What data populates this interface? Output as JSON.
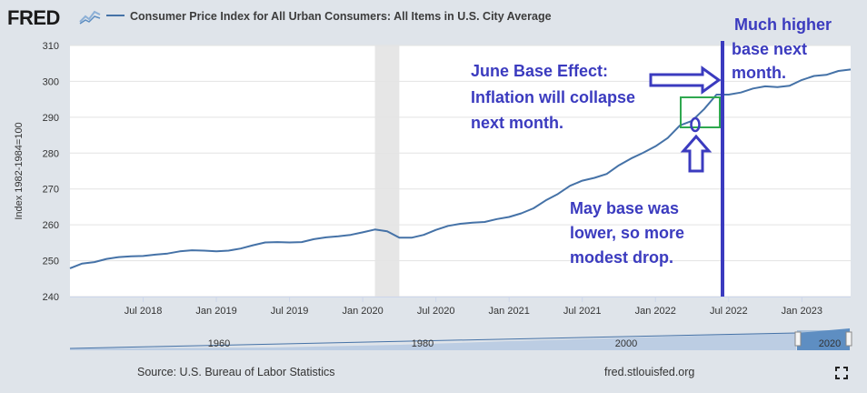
{
  "logo": "FRED",
  "chart_data": {
    "type": "line",
    "title": "Consumer Price Index for All Urban Consumers: All Items in U.S. City Average",
    "ylabel": "Index 1982-1984=100",
    "ylim": [
      240,
      310
    ],
    "yticks": [
      240,
      250,
      260,
      270,
      280,
      290,
      300,
      310
    ],
    "xlim": [
      "2018-01",
      "2023-05"
    ],
    "xticks": [
      "Jul 2018",
      "Jan 2019",
      "Jul 2019",
      "Jan 2020",
      "Jul 2020",
      "Jan 2021",
      "Jul 2021",
      "Jan 2022",
      "Jul 2022",
      "Jan 2023"
    ],
    "grid": "horizontal",
    "recession_shading": {
      "start": "2020-02",
      "end": "2020-04"
    },
    "series": [
      {
        "name": "Consumer Price Index for All Urban Consumers: All Items in U.S. City Average",
        "color": "#4572a7",
        "x": [
          "2018-01",
          "2018-02",
          "2018-03",
          "2018-04",
          "2018-05",
          "2018-06",
          "2018-07",
          "2018-08",
          "2018-09",
          "2018-10",
          "2018-11",
          "2018-12",
          "2019-01",
          "2019-02",
          "2019-03",
          "2019-04",
          "2019-05",
          "2019-06",
          "2019-07",
          "2019-08",
          "2019-09",
          "2019-10",
          "2019-11",
          "2019-12",
          "2020-01",
          "2020-02",
          "2020-03",
          "2020-04",
          "2020-05",
          "2020-06",
          "2020-07",
          "2020-08",
          "2020-09",
          "2020-10",
          "2020-11",
          "2020-12",
          "2021-01",
          "2021-02",
          "2021-03",
          "2021-04",
          "2021-05",
          "2021-06",
          "2021-07",
          "2021-08",
          "2021-09",
          "2021-10",
          "2021-11",
          "2021-12",
          "2022-01",
          "2022-02",
          "2022-03",
          "2022-04",
          "2022-05",
          "2022-06",
          "2022-07",
          "2022-08",
          "2022-09",
          "2022-10",
          "2022-11",
          "2022-12",
          "2023-01",
          "2023-02",
          "2023-03",
          "2023-04",
          "2023-05"
        ],
        "values": [
          247.9,
          249.2,
          249.6,
          250.5,
          251.0,
          251.2,
          251.3,
          251.7,
          252.0,
          252.6,
          252.9,
          252.8,
          252.6,
          252.8,
          253.4,
          254.3,
          255.1,
          255.2,
          255.1,
          255.2,
          256.0,
          256.5,
          256.8,
          257.2,
          257.9,
          258.7,
          258.2,
          256.4,
          256.4,
          257.2,
          258.6,
          259.7,
          260.3,
          260.6,
          260.8,
          261.6,
          262.2,
          263.2,
          264.6,
          266.8,
          268.6,
          270.9,
          272.3,
          273.1,
          274.2,
          276.6,
          278.5,
          280.1,
          281.9,
          284.2,
          287.7,
          289.0,
          292.3,
          296.3,
          296.3,
          296.9,
          298.0,
          298.6,
          298.4,
          298.8,
          300.4,
          301.5,
          301.8,
          302.9,
          303.3
        ]
      }
    ],
    "navigator": {
      "labels": [
        "1960",
        "1980",
        "2000",
        "2020"
      ]
    }
  },
  "annotations": {
    "june": [
      "June Base Effect:",
      "Inflation will collapse",
      "next month."
    ],
    "higher": [
      "Much higher",
      "base next",
      "month."
    ],
    "may": [
      "May base was",
      "lower, so more",
      "modest drop."
    ]
  },
  "footer": {
    "source": "Source: U.S. Bureau of Labor Statistics",
    "site": "fred.stlouisfed.org"
  },
  "colors": {
    "line": "#4572a7",
    "annotation": "#3b3bbf",
    "box": "#2fa84f",
    "recession": "#e6e6e6"
  }
}
